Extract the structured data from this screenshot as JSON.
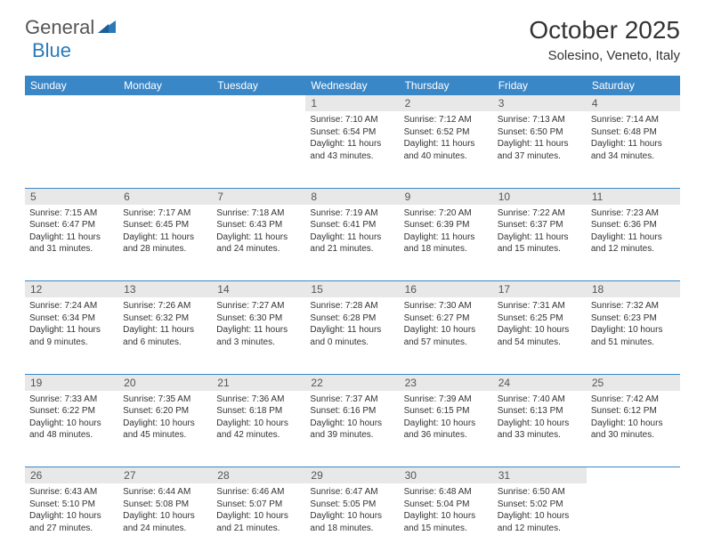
{
  "logo": {
    "part1": "General",
    "part2": "Blue"
  },
  "title": "October 2025",
  "location": "Solesino, Veneto, Italy",
  "colors": {
    "header_bg": "#3a87c8",
    "header_text": "#ffffff",
    "daynum_bg": "#e8e8e8",
    "border": "#3a87c8",
    "text": "#333333",
    "logo_gray": "#555555",
    "logo_blue": "#2a7ab9"
  },
  "day_headers": [
    "Sunday",
    "Monday",
    "Tuesday",
    "Wednesday",
    "Thursday",
    "Friday",
    "Saturday"
  ],
  "weeks": [
    {
      "nums": [
        "",
        "",
        "",
        "1",
        "2",
        "3",
        "4"
      ],
      "cells": [
        "",
        "",
        "",
        "Sunrise: 7:10 AM\nSunset: 6:54 PM\nDaylight: 11 hours and 43 minutes.",
        "Sunrise: 7:12 AM\nSunset: 6:52 PM\nDaylight: 11 hours and 40 minutes.",
        "Sunrise: 7:13 AM\nSunset: 6:50 PM\nDaylight: 11 hours and 37 minutes.",
        "Sunrise: 7:14 AM\nSunset: 6:48 PM\nDaylight: 11 hours and 34 minutes."
      ]
    },
    {
      "nums": [
        "5",
        "6",
        "7",
        "8",
        "9",
        "10",
        "11"
      ],
      "cells": [
        "Sunrise: 7:15 AM\nSunset: 6:47 PM\nDaylight: 11 hours and 31 minutes.",
        "Sunrise: 7:17 AM\nSunset: 6:45 PM\nDaylight: 11 hours and 28 minutes.",
        "Sunrise: 7:18 AM\nSunset: 6:43 PM\nDaylight: 11 hours and 24 minutes.",
        "Sunrise: 7:19 AM\nSunset: 6:41 PM\nDaylight: 11 hours and 21 minutes.",
        "Sunrise: 7:20 AM\nSunset: 6:39 PM\nDaylight: 11 hours and 18 minutes.",
        "Sunrise: 7:22 AM\nSunset: 6:37 PM\nDaylight: 11 hours and 15 minutes.",
        "Sunrise: 7:23 AM\nSunset: 6:36 PM\nDaylight: 11 hours and 12 minutes."
      ]
    },
    {
      "nums": [
        "12",
        "13",
        "14",
        "15",
        "16",
        "17",
        "18"
      ],
      "cells": [
        "Sunrise: 7:24 AM\nSunset: 6:34 PM\nDaylight: 11 hours and 9 minutes.",
        "Sunrise: 7:26 AM\nSunset: 6:32 PM\nDaylight: 11 hours and 6 minutes.",
        "Sunrise: 7:27 AM\nSunset: 6:30 PM\nDaylight: 11 hours and 3 minutes.",
        "Sunrise: 7:28 AM\nSunset: 6:28 PM\nDaylight: 11 hours and 0 minutes.",
        "Sunrise: 7:30 AM\nSunset: 6:27 PM\nDaylight: 10 hours and 57 minutes.",
        "Sunrise: 7:31 AM\nSunset: 6:25 PM\nDaylight: 10 hours and 54 minutes.",
        "Sunrise: 7:32 AM\nSunset: 6:23 PM\nDaylight: 10 hours and 51 minutes."
      ]
    },
    {
      "nums": [
        "19",
        "20",
        "21",
        "22",
        "23",
        "24",
        "25"
      ],
      "cells": [
        "Sunrise: 7:33 AM\nSunset: 6:22 PM\nDaylight: 10 hours and 48 minutes.",
        "Sunrise: 7:35 AM\nSunset: 6:20 PM\nDaylight: 10 hours and 45 minutes.",
        "Sunrise: 7:36 AM\nSunset: 6:18 PM\nDaylight: 10 hours and 42 minutes.",
        "Sunrise: 7:37 AM\nSunset: 6:16 PM\nDaylight: 10 hours and 39 minutes.",
        "Sunrise: 7:39 AM\nSunset: 6:15 PM\nDaylight: 10 hours and 36 minutes.",
        "Sunrise: 7:40 AM\nSunset: 6:13 PM\nDaylight: 10 hours and 33 minutes.",
        "Sunrise: 7:42 AM\nSunset: 6:12 PM\nDaylight: 10 hours and 30 minutes."
      ]
    },
    {
      "nums": [
        "26",
        "27",
        "28",
        "29",
        "30",
        "31",
        ""
      ],
      "cells": [
        "Sunrise: 6:43 AM\nSunset: 5:10 PM\nDaylight: 10 hours and 27 minutes.",
        "Sunrise: 6:44 AM\nSunset: 5:08 PM\nDaylight: 10 hours and 24 minutes.",
        "Sunrise: 6:46 AM\nSunset: 5:07 PM\nDaylight: 10 hours and 21 minutes.",
        "Sunrise: 6:47 AM\nSunset: 5:05 PM\nDaylight: 10 hours and 18 minutes.",
        "Sunrise: 6:48 AM\nSunset: 5:04 PM\nDaylight: 10 hours and 15 minutes.",
        "Sunrise: 6:50 AM\nSunset: 5:02 PM\nDaylight: 10 hours and 12 minutes.",
        ""
      ]
    }
  ]
}
